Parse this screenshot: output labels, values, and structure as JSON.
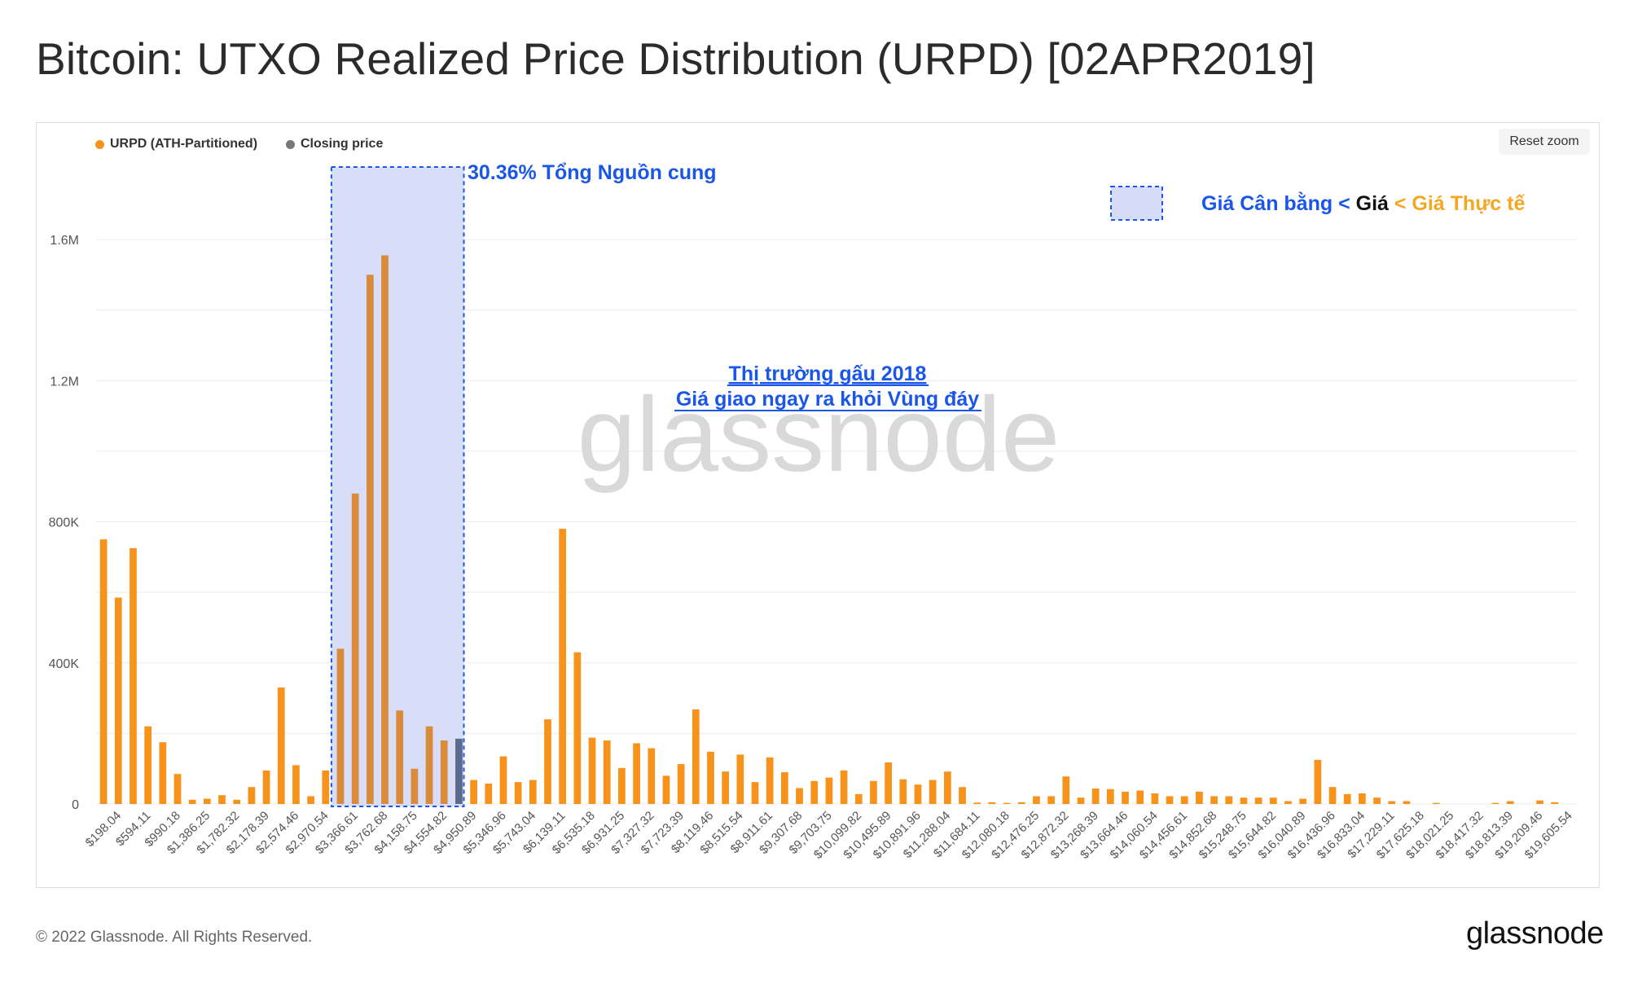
{
  "title": "Bitcoin: UTXO Realized Price Distribution (URPD) [02APR2019]",
  "legend": {
    "urpd": "URPD (ATH-Partitioned)",
    "closing": "Closing price"
  },
  "reset_zoom": "Reset zoom",
  "watermark": "glassnode",
  "footer": "© 2022 Glassnode. All Rights Reserved.",
  "brand": "glassnode",
  "annotations": {
    "supply_pct": "30.36% Tổng Nguồn cung",
    "bear_line1": "Thị trường gấu 2018",
    "bear_line2": "Giá giao ngay ra khỏi Vùng đáy",
    "legend_box_label": {
      "part1": "Giá Cân bằng <",
      "part2": " Giá ",
      "part3": "< Giá Thực tế"
    }
  },
  "colors": {
    "bar": "#f7931a",
    "closing": "#5a6b8c",
    "shade": "#d6dcf8",
    "blue": "#1a56e8",
    "orange": "#f5a623",
    "grid": "#ececec"
  },
  "chart_data": {
    "type": "bar",
    "yticks": [
      "0",
      "400K",
      "800K",
      "1.2M",
      "1.6M"
    ],
    "ylim": [
      0,
      1800000
    ],
    "bucket_start": 198.04,
    "bucket_width": 198.04,
    "xlabels": [
      "$198.04",
      "$594.11",
      "$990.18",
      "$1,386.25",
      "$1,782.32",
      "$2,178.39",
      "$2,574.46",
      "$2,970.54",
      "$3,366.61",
      "$3,762.68",
      "$4,158.75",
      "$4,554.82",
      "$4,950.89",
      "$5,346.96",
      "$5,743.04",
      "$6,139.11",
      "$6,535.18",
      "$6,931.25",
      "$7,327.32",
      "$7,723.39",
      "$8,119.46",
      "$8,515.54",
      "$8,911.61",
      "$9,307.68",
      "$9,703.75",
      "$10,099.82",
      "$10,495.89",
      "$10,891.96",
      "$11,288.04",
      "$11,684.11",
      "$12,080.18",
      "$12,476.25",
      "$12,872.32",
      "$13,268.39",
      "$13,664.46",
      "$14,060.54",
      "$14,456.61",
      "$14,852.68",
      "$15,248.75",
      "$15,644.82",
      "$16,040.89",
      "$16,436.96",
      "$16,833.04",
      "$17,229.11",
      "$17,625.18",
      "$18,021.25",
      "$18,417.32",
      "$18,813.39",
      "$19,209.46",
      "$19,605.54"
    ],
    "values": [
      750000,
      585000,
      725000,
      220000,
      175000,
      85000,
      12000,
      15000,
      25000,
      12000,
      48000,
      95000,
      330000,
      110000,
      22000,
      95000,
      440000,
      880000,
      1500000,
      1555000,
      265000,
      100000,
      220000,
      180000,
      185000,
      68000,
      58000,
      135000,
      62000,
      68000,
      240000,
      780000,
      430000,
      188000,
      180000,
      102000,
      172000,
      158000,
      80000,
      113000,
      268000,
      148000,
      92000,
      140000,
      62000,
      132000,
      90000,
      45000,
      65000,
      75000,
      95000,
      28000,
      65000,
      118000,
      70000,
      55000,
      68000,
      92000,
      48000,
      4000,
      5000,
      3000,
      5000,
      22000,
      22000,
      78000,
      18000,
      44000,
      42000,
      35000,
      38000,
      30000,
      22000,
      22000,
      35000,
      22000,
      22000,
      18000,
      18000,
      18000,
      8000,
      15000,
      125000,
      48000,
      28000,
      30000,
      18000,
      8000,
      8000,
      0,
      3000,
      0,
      0,
      0,
      3000,
      8000,
      0,
      10000,
      5000,
      0
    ],
    "closing_price_bucket": 24,
    "shaded_range": [
      16,
      24
    ]
  }
}
